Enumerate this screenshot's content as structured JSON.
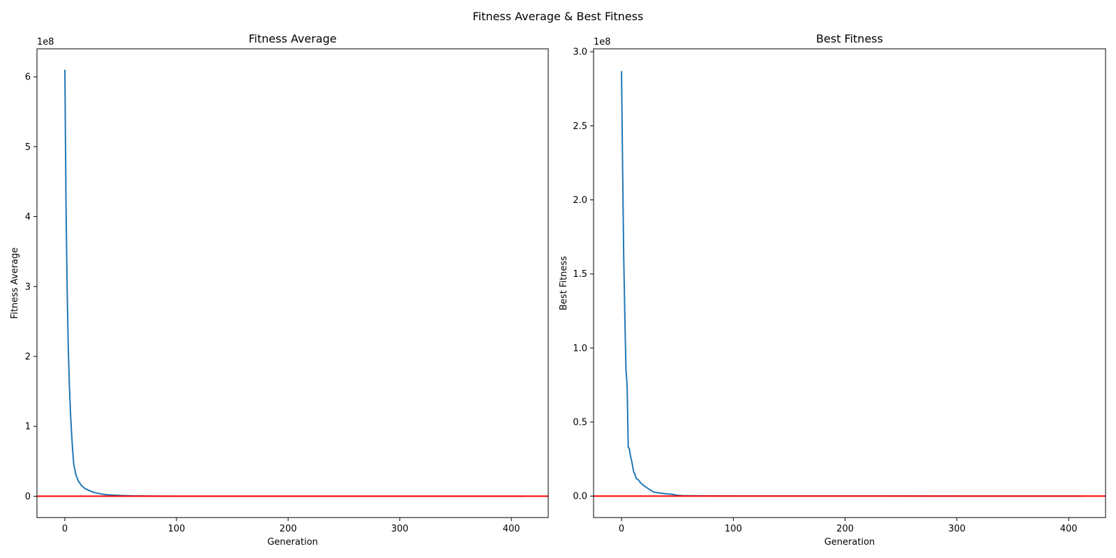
{
  "figure": {
    "suptitle": "Fitness Average & Best Fitness"
  },
  "chart_data": [
    {
      "type": "line",
      "title": "Fitness Average",
      "xlabel": "Generation",
      "ylabel": "Fitness Average",
      "offset_text": "1e8",
      "xlim": [
        -25,
        433
      ],
      "ylim": [
        -0.305,
        6.4
      ],
      "xticks": [
        0,
        100,
        200,
        300,
        400
      ],
      "xtick_labels": [
        "0",
        "100",
        "200",
        "300",
        "400"
      ],
      "yticks": [
        0,
        1,
        2,
        3,
        4,
        5,
        6
      ],
      "ytick_labels": [
        "0",
        "1",
        "2",
        "3",
        "4",
        "5",
        "6"
      ],
      "grid": false,
      "hline": {
        "y": 0,
        "color": "#ff0000"
      },
      "series": [
        {
          "color": "#1f77b4",
          "x": [
            0,
            1,
            2,
            3,
            4,
            5,
            6,
            7,
            8,
            10,
            12,
            15,
            18,
            22,
            26,
            30,
            35,
            40,
            50,
            60,
            80,
            100,
            150,
            200,
            300,
            400,
            412
          ],
          "y": [
            6.1,
            4.2,
            3.0,
            2.15,
            1.6,
            1.2,
            0.9,
            0.65,
            0.45,
            0.3,
            0.22,
            0.15,
            0.11,
            0.08,
            0.055,
            0.04,
            0.025,
            0.018,
            0.01,
            0.005,
            0.002,
            0.001,
            0.0005,
            0.0003,
            0.0002,
            0.0001,
            0.0001
          ]
        }
      ]
    },
    {
      "type": "line",
      "title": "Best Fitness",
      "xlabel": "Generation",
      "ylabel": "Best Fitness",
      "offset_text": "1e8",
      "xlim": [
        -25,
        433
      ],
      "ylim": [
        -0.145,
        3.02
      ],
      "xticks": [
        0,
        100,
        200,
        300,
        400
      ],
      "xtick_labels": [
        "0",
        "100",
        "200",
        "300",
        "400"
      ],
      "yticks": [
        0,
        0.5,
        1.0,
        1.5,
        2.0,
        2.5,
        3.0
      ],
      "ytick_labels": [
        "0.0",
        "0.5",
        "1.0",
        "1.5",
        "2.0",
        "2.5",
        "3.0"
      ],
      "grid": false,
      "hline": {
        "y": 0,
        "color": "#ff0000"
      },
      "series": [
        {
          "color": "#1f77b4",
          "x": [
            0,
            1,
            2,
            3,
            4,
            5,
            6,
            7,
            8,
            9,
            10,
            11,
            12,
            13,
            15,
            17,
            20,
            22,
            25,
            28,
            30,
            35,
            40,
            45,
            48,
            50,
            55,
            60,
            80,
            100,
            200,
            300,
            400,
            412
          ],
          "y": [
            2.87,
            2.2,
            1.6,
            1.2,
            0.85,
            0.75,
            0.33,
            0.32,
            0.27,
            0.24,
            0.2,
            0.16,
            0.15,
            0.12,
            0.11,
            0.09,
            0.07,
            0.06,
            0.045,
            0.03,
            0.025,
            0.02,
            0.015,
            0.012,
            0.008,
            0.005,
            0.003,
            0.002,
            0.001,
            0.0005,
            0.0002,
            0.0001,
            0.0001,
            0.0001
          ]
        }
      ]
    }
  ]
}
